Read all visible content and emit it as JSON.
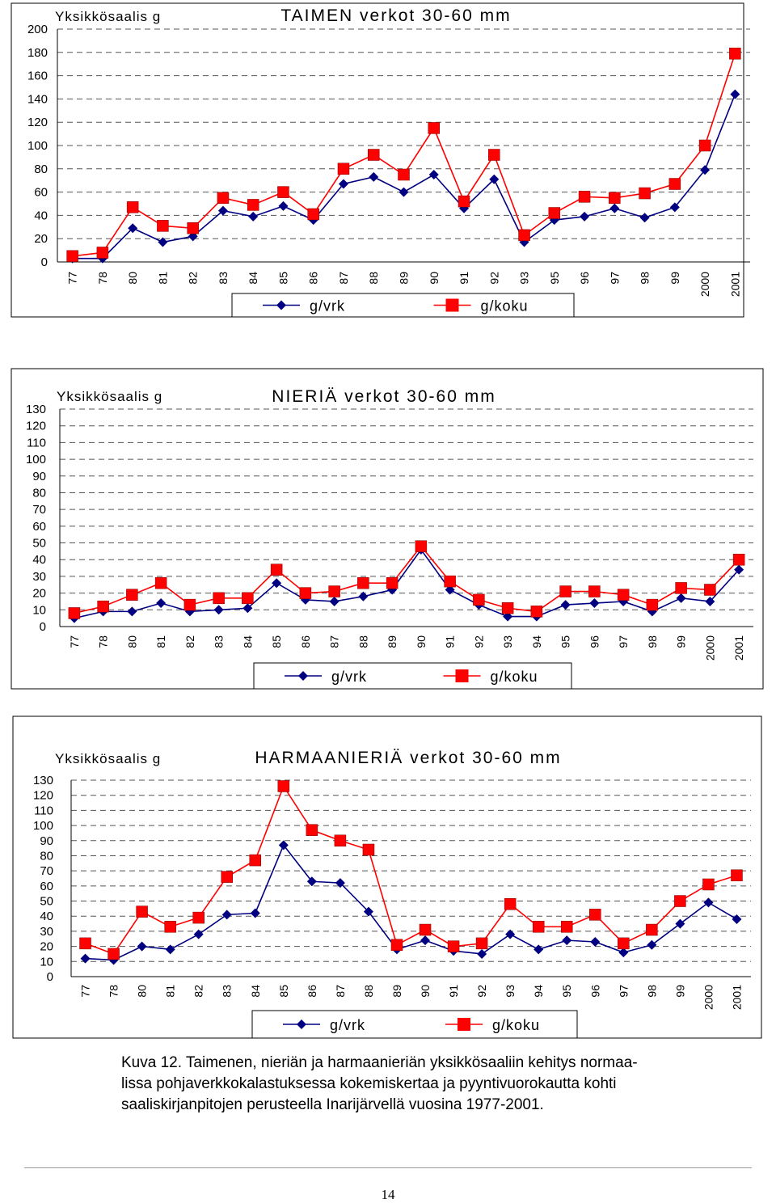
{
  "chart_data": [
    {
      "type": "line",
      "title": "TAIMEN verkot 30-60 mm",
      "ylabel": "Yksikkösaalis g",
      "ylim": [
        0,
        200
      ],
      "yticks": [
        "0",
        "20",
        "40",
        "60",
        "80",
        "100",
        "120",
        "140",
        "160",
        "180",
        "200"
      ],
      "categories": [
        "77",
        "78",
        "80",
        "81",
        "82",
        "83",
        "84",
        "85",
        "86",
        "87",
        "88",
        "89",
        "90",
        "91",
        "92",
        "93",
        "95",
        "96",
        "97",
        "98",
        "99",
        "2000",
        "2001"
      ],
      "series": [
        {
          "name": "g/vrk",
          "color": "#000080",
          "marker": "diamond",
          "values": [
            3,
            3,
            29,
            17,
            22,
            44,
            39,
            48,
            36,
            67,
            73,
            60,
            75,
            46,
            71,
            17,
            36,
            39,
            46,
            38,
            47,
            79,
            144
          ]
        },
        {
          "name": "g/koku",
          "color": "#ff0000",
          "marker": "square",
          "values": [
            5,
            8,
            47,
            31,
            29,
            55,
            49,
            60,
            41,
            80,
            92,
            75,
            115,
            52,
            92,
            23,
            42,
            56,
            55,
            59,
            67,
            100,
            179
          ]
        }
      ],
      "legend": "bottom",
      "grid": true
    },
    {
      "type": "line",
      "title": "NIERIÄ verkot 30-60 mm",
      "ylabel": "Yksikkösaalis g",
      "ylim": [
        0,
        130
      ],
      "yticks": [
        "0",
        "10",
        "20",
        "30",
        "40",
        "50",
        "60",
        "70",
        "80",
        "90",
        "100",
        "110",
        "120",
        "130"
      ],
      "categories": [
        "77",
        "78",
        "80",
        "81",
        "82",
        "83",
        "84",
        "85",
        "86",
        "87",
        "88",
        "89",
        "90",
        "91",
        "92",
        "93",
        "94",
        "95",
        "96",
        "97",
        "98",
        "99",
        "2000",
        "2001"
      ],
      "series": [
        {
          "name": "g/vrk",
          "color": "#000080",
          "marker": "diamond",
          "values": [
            5,
            9,
            9,
            14,
            9,
            10,
            11,
            26,
            16,
            15,
            18,
            22,
            46,
            22,
            13,
            6,
            6,
            13,
            14,
            15,
            9,
            17,
            15,
            34
          ]
        },
        {
          "name": "g/koku",
          "color": "#ff0000",
          "marker": "square",
          "values": [
            8,
            12,
            19,
            26,
            13,
            17,
            17,
            34,
            20,
            21,
            26,
            26,
            48,
            27,
            16,
            11,
            9,
            21,
            21,
            19,
            13,
            23,
            22,
            40
          ]
        }
      ],
      "legend": "bottom",
      "grid": true
    },
    {
      "type": "line",
      "title": "HARMAANIERIÄ verkot 30-60 mm",
      "ylabel": "Yksikkösaalis g",
      "ylim": [
        0,
        130
      ],
      "yticks": [
        "0",
        "10",
        "20",
        "30",
        "40",
        "50",
        "60",
        "70",
        "80",
        "90",
        "100",
        "110",
        "120",
        "130"
      ],
      "categories": [
        "77",
        "78",
        "80",
        "81",
        "82",
        "83",
        "84",
        "85",
        "86",
        "87",
        "88",
        "89",
        "90",
        "91",
        "92",
        "93",
        "94",
        "95",
        "96",
        "97",
        "98",
        "99",
        "2000",
        "2001"
      ],
      "series": [
        {
          "name": "g/vrk",
          "color": "#000080",
          "marker": "diamond",
          "values": [
            12,
            11,
            20,
            18,
            28,
            41,
            42,
            87,
            63,
            62,
            43,
            18,
            24,
            17,
            15,
            28,
            18,
            24,
            23,
            16,
            21,
            35,
            49,
            38
          ]
        },
        {
          "name": "g/koku",
          "color": "#ff0000",
          "marker": "square",
          "values": [
            22,
            15,
            43,
            33,
            39,
            66,
            77,
            126,
            97,
            90,
            84,
            21,
            31,
            20,
            22,
            48,
            33,
            33,
            41,
            22,
            31,
            50,
            61,
            67
          ]
        }
      ],
      "legend": "bottom",
      "grid": true
    }
  ],
  "caption": {
    "prefix": "Kuva 12.",
    "lines": [
      " Taimenen, nieriän ja harmaanieriän yksikkösaaliin kehitys normaa-",
      "lissa pohjaverkkokalastuksessa kokemiskertaa ja pyyntivuorokautta kohti",
      "saaliskirjanpitojen perusteella Inarijärvellä vuosina 1977-2001."
    ]
  },
  "page_number": "14"
}
